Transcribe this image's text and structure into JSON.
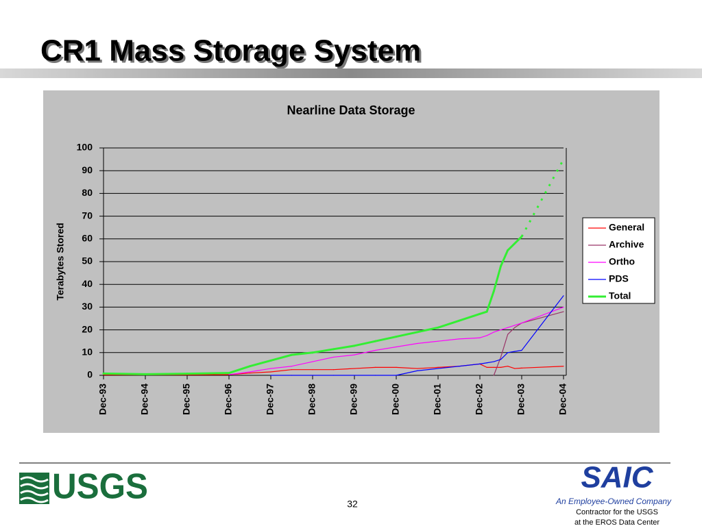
{
  "slide": {
    "title": "CR1 Mass Storage System",
    "page_number": "32",
    "left_logo": "USGS",
    "right_logo": "SAIC",
    "tagline": "An Employee-Owned Company",
    "contractor_lines": [
      "Contractor for the USGS",
      "at the EROS Data Center"
    ]
  },
  "chart_data": {
    "type": "line",
    "title": "Nearline Data Storage",
    "y_label": "Terabytes Stored",
    "x": [
      "1993-12",
      "1994-12",
      "1995-12",
      "1996-12",
      "1997-06",
      "1997-12",
      "1998-06",
      "1998-12",
      "1999-06",
      "1999-12",
      "2000-06",
      "2000-12",
      "2001-06",
      "2001-12",
      "2002-06",
      "2002-12",
      "2003-02",
      "2003-04",
      "2003-06",
      "2003-08",
      "2003-10",
      "2003-12",
      "2004-12"
    ],
    "xlim": [
      "1993-12",
      "2004-12"
    ],
    "xticks": [
      {
        "value": "1993-12",
        "label": "Dec-93"
      },
      {
        "value": "1994-12",
        "label": "Dec-94"
      },
      {
        "value": "1995-12",
        "label": "Dec-95"
      },
      {
        "value": "1996-12",
        "label": "Dec-96"
      },
      {
        "value": "1997-12",
        "label": "Dec-97"
      },
      {
        "value": "1998-12",
        "label": "Dec-98"
      },
      {
        "value": "1999-12",
        "label": "Dec-99"
      },
      {
        "value": "2000-12",
        "label": "Dec-00"
      },
      {
        "value": "2001-12",
        "label": "Dec-01"
      },
      {
        "value": "2002-12",
        "label": "Dec-02"
      },
      {
        "value": "2003-12",
        "label": "Dec-03"
      },
      {
        "value": "2004-12",
        "label": "Dec-04"
      }
    ],
    "ylim": [
      0,
      100
    ],
    "yticks": [
      0,
      10,
      20,
      30,
      40,
      50,
      60,
      70,
      80,
      90,
      100
    ],
    "grid": true,
    "legend": "right",
    "series": [
      {
        "name": "General",
        "color": "#ff0000",
        "values": [
          0.2,
          0.2,
          0.2,
          0.3,
          1,
          1.5,
          2.5,
          2.5,
          2.5,
          3,
          3.5,
          3.5,
          3,
          3.5,
          4,
          5,
          3.5,
          3.5,
          3.5,
          4,
          3,
          3.2,
          4
        ]
      },
      {
        "name": "Archive",
        "color": "#993366",
        "values": [
          null,
          null,
          null,
          null,
          null,
          null,
          null,
          null,
          null,
          null,
          null,
          null,
          null,
          null,
          null,
          null,
          null,
          0,
          8,
          18,
          21,
          23,
          28
        ]
      },
      {
        "name": "Ortho",
        "color": "#ff00ff",
        "values": [
          null,
          null,
          null,
          0.3,
          1.5,
          3,
          4,
          6,
          8,
          9,
          11,
          12.5,
          14,
          15,
          16,
          16.5,
          17.5,
          19,
          20,
          21,
          22,
          23,
          30
        ]
      },
      {
        "name": "PDS",
        "color": "#0000ff",
        "values": [
          null,
          null,
          null,
          null,
          null,
          0,
          0,
          0,
          0,
          0,
          0,
          0,
          2,
          3,
          4,
          5,
          5.5,
          6,
          7,
          10,
          10.5,
          11,
          35
        ]
      },
      {
        "name": "Total",
        "color": "#33ee33",
        "width": 3,
        "dotted_from": "2003-12",
        "values": [
          0.8,
          0.5,
          0.7,
          1,
          4,
          6.5,
          9,
          10,
          11.5,
          13,
          15,
          17,
          19,
          21,
          24,
          27,
          28,
          37,
          48,
          55,
          58,
          61,
          95
        ]
      }
    ]
  }
}
